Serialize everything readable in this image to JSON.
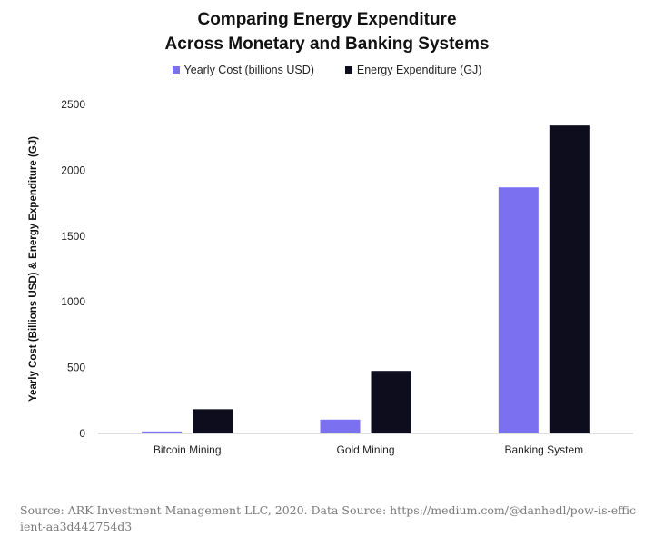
{
  "chart_data": {
    "type": "bar",
    "title_line1": "Comparing Energy Expenditure",
    "title_line2": "Across Monetary and Banking Systems",
    "categories": [
      "Bitcoin Mining",
      "Gold Mining",
      "Banking System"
    ],
    "series": [
      {
        "name": "Yearly Cost (billions USD)",
        "color": "#7b70f0",
        "values": [
          15,
          105,
          1870
        ]
      },
      {
        "name": "Energy Expenditure (GJ)",
        "color": "#0d0d1e",
        "values": [
          184,
          475,
          2340
        ]
      }
    ],
    "ylabel": "Yearly Cost (Billions USD) & Energy Expenditure (GJ)",
    "xlabel": "",
    "ylim": [
      0,
      2500
    ],
    "yticks": [
      "0",
      "500",
      "1000",
      "1500",
      "2000",
      "2500"
    ],
    "legend_position": "top-center",
    "grid": false
  },
  "source": "Source: ARK Investment Management LLC, 2020. Data Source: https://medium.com/@danhedl/pow-is-efficient-aa3d442754d3"
}
